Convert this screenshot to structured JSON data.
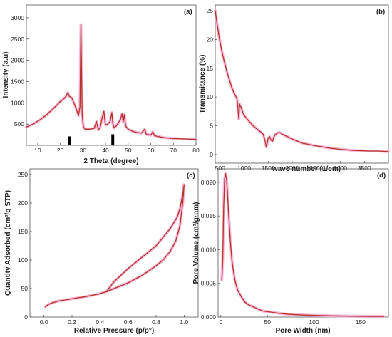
{
  "colors": {
    "line": "#b8322a",
    "halo": "#f2a7cf",
    "marker": "#000000"
  },
  "chart_data": [
    {
      "id": "a",
      "type": "line",
      "panel_label": "(a)",
      "xlabel": "2 Theta (degree)",
      "ylabel": "Intensity (a.u)",
      "xlim": [
        5,
        80
      ],
      "ylim": [
        0,
        3300
      ],
      "xticks": [
        10,
        20,
        30,
        40,
        50,
        60,
        70,
        80
      ],
      "yticks": [
        500,
        1000,
        1500,
        2000,
        2500,
        3000
      ],
      "grid": false,
      "series": [
        {
          "x": [
            5,
            8,
            11,
            14,
            16,
            18,
            20,
            21.5,
            22.5,
            23.3,
            24,
            25,
            26,
            27,
            28,
            28.7,
            29.1,
            29.4,
            29.7,
            30.2,
            31,
            33,
            35,
            36,
            36.8,
            37.6,
            38.5,
            39.3,
            39.9,
            40.5,
            42,
            42.8,
            43.2,
            43.8,
            45,
            46.5,
            47.3,
            47.8,
            48.3,
            48.9,
            50,
            52,
            54,
            56,
            57.3,
            58,
            60,
            60.9,
            61.6,
            63,
            66,
            70,
            75,
            80
          ],
          "y": [
            430,
            500,
            600,
            720,
            820,
            920,
            1030,
            1090,
            1150,
            1240,
            1150,
            1120,
            1000,
            870,
            700,
            900,
            2840,
            1800,
            700,
            430,
            380,
            380,
            400,
            560,
            360,
            420,
            650,
            800,
            500,
            480,
            560,
            770,
            520,
            410,
            470,
            600,
            740,
            550,
            720,
            450,
            380,
            330,
            300,
            290,
            380,
            260,
            240,
            320,
            230,
            210,
            180,
            160,
            150,
            140
          ]
        }
      ],
      "markers": [
        {
          "x": 24,
          "height": 210
        },
        {
          "x": 43.2,
          "height": 260
        }
      ]
    },
    {
      "id": "b",
      "type": "line",
      "panel_label": "(b)",
      "xlabel": "wave number (1/cm)",
      "ylabel": "Transmitance (%)",
      "xlim": [
        400,
        4000
      ],
      "ylim": [
        -1.5,
        26
      ],
      "xticks": [
        500,
        1000,
        1500,
        2000,
        2500,
        3000,
        3500
      ],
      "yticks": [
        0,
        5,
        10,
        15,
        20,
        25
      ],
      "grid": false,
      "series": [
        {
          "x": [
            400,
            450,
            500,
            550,
            600,
            650,
            700,
            750,
            800,
            850,
            870,
            890,
            905,
            920,
            940,
            970,
            1000,
            1100,
            1200,
            1300,
            1350,
            1400,
            1440,
            1460,
            1480,
            1500,
            1530,
            1560,
            1590,
            1620,
            1650,
            1700,
            1750,
            1800,
            2000,
            2200,
            2500,
            2800,
            3000,
            3300,
            3600,
            3800,
            4000
          ],
          "y": [
            25,
            22,
            19.5,
            17.5,
            15.8,
            14.2,
            12.8,
            11.5,
            10.5,
            9.8,
            8.2,
            6.2,
            8.8,
            8.4,
            8.2,
            7.4,
            6.8,
            5.8,
            4.9,
            4.2,
            3.9,
            3.5,
            2.2,
            1.3,
            2.0,
            2.9,
            3.1,
            2.5,
            2.3,
            3.1,
            3.5,
            3.8,
            3.8,
            3.5,
            2.7,
            2.0,
            1.5,
            1.1,
            0.9,
            0.7,
            0.6,
            0.6,
            0.5
          ]
        }
      ]
    },
    {
      "id": "c",
      "type": "line",
      "panel_label": "(c)",
      "xlabel": "Relative Pressure (p/p°)",
      "ylabel": "Quantity Adsorbed (cm³/g STP)",
      "xlim": [
        -0.1,
        1.1
      ],
      "ylim": [
        0,
        260
      ],
      "xticks": [
        0.0,
        0.2,
        0.4,
        0.6,
        0.8,
        1.0
      ],
      "yticks": [
        0,
        50,
        100,
        150,
        200,
        250
      ],
      "grid": false,
      "series": [
        {
          "x": [
            0.01,
            0.03,
            0.06,
            0.1,
            0.2,
            0.3,
            0.4,
            0.45,
            0.5,
            0.6,
            0.7,
            0.8,
            0.85,
            0.9,
            0.94,
            0.97,
            0.99,
            1.0
          ],
          "y": [
            18,
            22,
            25,
            28,
            32,
            36,
            41,
            45,
            50,
            60,
            73,
            90,
            100,
            115,
            133,
            160,
            200,
            232
          ]
        },
        {
          "x": [
            1.0,
            0.99,
            0.97,
            0.95,
            0.9,
            0.85,
            0.8,
            0.7,
            0.6,
            0.5,
            0.45
          ],
          "y": [
            232,
            215,
            190,
            175,
            155,
            140,
            125,
            105,
            85,
            62,
            46
          ]
        }
      ]
    },
    {
      "id": "d",
      "type": "line",
      "panel_label": "(d)",
      "xlabel": "Pore Width (nm)",
      "ylabel": "Pore Volume (cm³/g·nm)",
      "xlim": [
        -3,
        180
      ],
      "ylim": [
        0,
        0.022
      ],
      "xticks": [
        0,
        50,
        100,
        150
      ],
      "yticks": [
        0.0,
        0.005,
        0.01,
        0.015,
        0.02
      ],
      "grid": false,
      "series": [
        {
          "x": [
            1,
            2,
            3,
            4,
            5,
            6,
            7,
            8,
            10,
            12,
            15,
            18,
            22,
            26,
            30,
            35,
            40,
            45,
            50,
            60,
            70,
            80,
            100,
            120,
            150,
            175
          ],
          "y": [
            0.0055,
            0.0085,
            0.016,
            0.0205,
            0.0213,
            0.0205,
            0.0185,
            0.016,
            0.0115,
            0.0082,
            0.0055,
            0.004,
            0.003,
            0.0022,
            0.0018,
            0.0015,
            0.0012,
            0.0009,
            0.0008,
            0.0006,
            0.00045,
            0.00035,
            0.00025,
            0.00018,
            0.00012,
            0.0001
          ]
        }
      ]
    }
  ]
}
